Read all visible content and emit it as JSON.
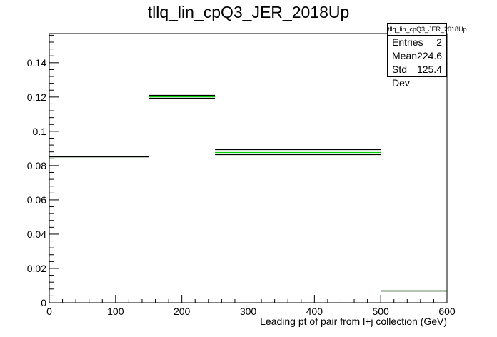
{
  "chart_data": {
    "type": "step",
    "title": "tllq_lin_cpQ3_JER_2018Up",
    "xlabel": "Leading pt of pair from l+j collection (GeV)",
    "ylabel": "",
    "xlim": [
      0,
      600
    ],
    "ylim": [
      0,
      0.157
    ],
    "xticks": [
      0,
      100,
      200,
      300,
      400,
      500,
      600
    ],
    "xtick_labels": [
      "0",
      "100",
      "200",
      "300",
      "400",
      "500",
      "600"
    ],
    "yticks": [
      0,
      0.02,
      0.04,
      0.06,
      0.08,
      0.1,
      0.12,
      0.14
    ],
    "ytick_labels": [
      "0",
      "0.02",
      "0.04",
      "0.06",
      "0.08",
      "0.1",
      "0.12",
      "0.14"
    ],
    "bin_edges": [
      0,
      150,
      250,
      500,
      600
    ],
    "series": [
      {
        "color": "#000000",
        "values": [
          0.0853,
          0.1213,
          0.0895,
          0.007
        ]
      },
      {
        "color": "#000000",
        "values": [
          0.0853,
          0.1195,
          0.0865,
          0.007
        ]
      },
      {
        "color": "#00cc00",
        "values": [
          0.0853,
          0.1205,
          0.088,
          0.007
        ]
      }
    ],
    "grid": false,
    "legend": "none"
  },
  "stats": {
    "name": "tllq_lin_cpQ3_JER_2018Up",
    "rows": [
      {
        "label": "Entries",
        "value": "2"
      },
      {
        "label": "Mean",
        "value": "224.6"
      },
      {
        "label": "Std Dev",
        "value": "125.4"
      }
    ]
  }
}
